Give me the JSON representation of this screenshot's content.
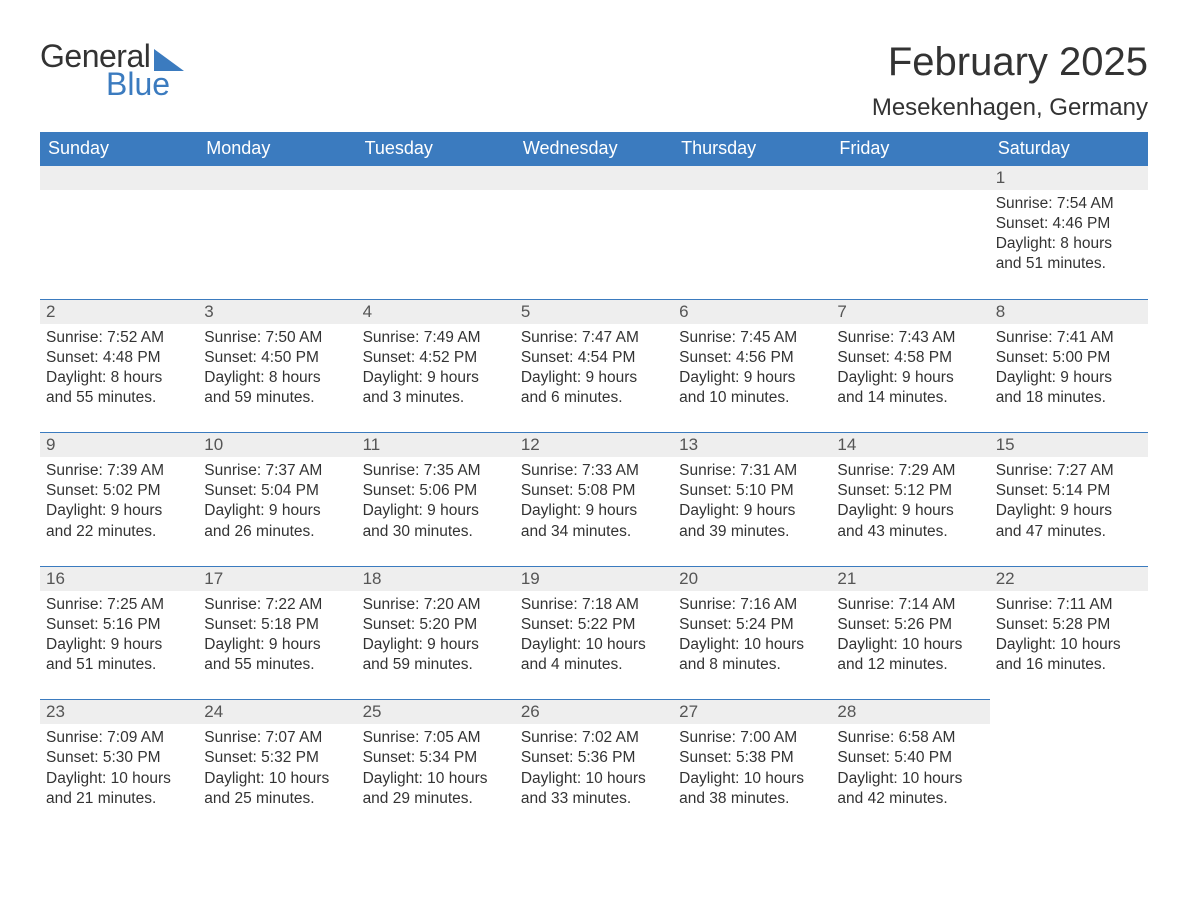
{
  "logo": {
    "word1": "General",
    "word2": "Blue"
  },
  "title": "February 2025",
  "subtitle": "Mesekenhagen, Germany",
  "colors": {
    "header_bg": "#3b7bbf",
    "header_text": "#ffffff",
    "daynum_bg": "#eeeeee",
    "border": "#3b7bbf",
    "body_text": "#333333",
    "page_bg": "#ffffff"
  },
  "typography": {
    "title_fontsize": 40,
    "subtitle_fontsize": 24,
    "header_fontsize": 18,
    "cell_fontsize": 15.5,
    "font_family": "Arial"
  },
  "layout": {
    "columns": 7,
    "rows": 5
  },
  "weekdays": [
    "Sunday",
    "Monday",
    "Tuesday",
    "Wednesday",
    "Thursday",
    "Friday",
    "Saturday"
  ],
  "weeks": [
    {
      "days": [
        null,
        null,
        null,
        null,
        null,
        null,
        {
          "num": "1",
          "sunrise": "Sunrise: 7:54 AM",
          "sunset": "Sunset: 4:46 PM",
          "daylight1": "Daylight: 8 hours",
          "daylight2": "and 51 minutes."
        }
      ]
    },
    {
      "days": [
        {
          "num": "2",
          "sunrise": "Sunrise: 7:52 AM",
          "sunset": "Sunset: 4:48 PM",
          "daylight1": "Daylight: 8 hours",
          "daylight2": "and 55 minutes."
        },
        {
          "num": "3",
          "sunrise": "Sunrise: 7:50 AM",
          "sunset": "Sunset: 4:50 PM",
          "daylight1": "Daylight: 8 hours",
          "daylight2": "and 59 minutes."
        },
        {
          "num": "4",
          "sunrise": "Sunrise: 7:49 AM",
          "sunset": "Sunset: 4:52 PM",
          "daylight1": "Daylight: 9 hours",
          "daylight2": "and 3 minutes."
        },
        {
          "num": "5",
          "sunrise": "Sunrise: 7:47 AM",
          "sunset": "Sunset: 4:54 PM",
          "daylight1": "Daylight: 9 hours",
          "daylight2": "and 6 minutes."
        },
        {
          "num": "6",
          "sunrise": "Sunrise: 7:45 AM",
          "sunset": "Sunset: 4:56 PM",
          "daylight1": "Daylight: 9 hours",
          "daylight2": "and 10 minutes."
        },
        {
          "num": "7",
          "sunrise": "Sunrise: 7:43 AM",
          "sunset": "Sunset: 4:58 PM",
          "daylight1": "Daylight: 9 hours",
          "daylight2": "and 14 minutes."
        },
        {
          "num": "8",
          "sunrise": "Sunrise: 7:41 AM",
          "sunset": "Sunset: 5:00 PM",
          "daylight1": "Daylight: 9 hours",
          "daylight2": "and 18 minutes."
        }
      ]
    },
    {
      "days": [
        {
          "num": "9",
          "sunrise": "Sunrise: 7:39 AM",
          "sunset": "Sunset: 5:02 PM",
          "daylight1": "Daylight: 9 hours",
          "daylight2": "and 22 minutes."
        },
        {
          "num": "10",
          "sunrise": "Sunrise: 7:37 AM",
          "sunset": "Sunset: 5:04 PM",
          "daylight1": "Daylight: 9 hours",
          "daylight2": "and 26 minutes."
        },
        {
          "num": "11",
          "sunrise": "Sunrise: 7:35 AM",
          "sunset": "Sunset: 5:06 PM",
          "daylight1": "Daylight: 9 hours",
          "daylight2": "and 30 minutes."
        },
        {
          "num": "12",
          "sunrise": "Sunrise: 7:33 AM",
          "sunset": "Sunset: 5:08 PM",
          "daylight1": "Daylight: 9 hours",
          "daylight2": "and 34 minutes."
        },
        {
          "num": "13",
          "sunrise": "Sunrise: 7:31 AM",
          "sunset": "Sunset: 5:10 PM",
          "daylight1": "Daylight: 9 hours",
          "daylight2": "and 39 minutes."
        },
        {
          "num": "14",
          "sunrise": "Sunrise: 7:29 AM",
          "sunset": "Sunset: 5:12 PM",
          "daylight1": "Daylight: 9 hours",
          "daylight2": "and 43 minutes."
        },
        {
          "num": "15",
          "sunrise": "Sunrise: 7:27 AM",
          "sunset": "Sunset: 5:14 PM",
          "daylight1": "Daylight: 9 hours",
          "daylight2": "and 47 minutes."
        }
      ]
    },
    {
      "days": [
        {
          "num": "16",
          "sunrise": "Sunrise: 7:25 AM",
          "sunset": "Sunset: 5:16 PM",
          "daylight1": "Daylight: 9 hours",
          "daylight2": "and 51 minutes."
        },
        {
          "num": "17",
          "sunrise": "Sunrise: 7:22 AM",
          "sunset": "Sunset: 5:18 PM",
          "daylight1": "Daylight: 9 hours",
          "daylight2": "and 55 minutes."
        },
        {
          "num": "18",
          "sunrise": "Sunrise: 7:20 AM",
          "sunset": "Sunset: 5:20 PM",
          "daylight1": "Daylight: 9 hours",
          "daylight2": "and 59 minutes."
        },
        {
          "num": "19",
          "sunrise": "Sunrise: 7:18 AM",
          "sunset": "Sunset: 5:22 PM",
          "daylight1": "Daylight: 10 hours",
          "daylight2": "and 4 minutes."
        },
        {
          "num": "20",
          "sunrise": "Sunrise: 7:16 AM",
          "sunset": "Sunset: 5:24 PM",
          "daylight1": "Daylight: 10 hours",
          "daylight2": "and 8 minutes."
        },
        {
          "num": "21",
          "sunrise": "Sunrise: 7:14 AM",
          "sunset": "Sunset: 5:26 PM",
          "daylight1": "Daylight: 10 hours",
          "daylight2": "and 12 minutes."
        },
        {
          "num": "22",
          "sunrise": "Sunrise: 7:11 AM",
          "sunset": "Sunset: 5:28 PM",
          "daylight1": "Daylight: 10 hours",
          "daylight2": "and 16 minutes."
        }
      ]
    },
    {
      "days": [
        {
          "num": "23",
          "sunrise": "Sunrise: 7:09 AM",
          "sunset": "Sunset: 5:30 PM",
          "daylight1": "Daylight: 10 hours",
          "daylight2": "and 21 minutes."
        },
        {
          "num": "24",
          "sunrise": "Sunrise: 7:07 AM",
          "sunset": "Sunset: 5:32 PM",
          "daylight1": "Daylight: 10 hours",
          "daylight2": "and 25 minutes."
        },
        {
          "num": "25",
          "sunrise": "Sunrise: 7:05 AM",
          "sunset": "Sunset: 5:34 PM",
          "daylight1": "Daylight: 10 hours",
          "daylight2": "and 29 minutes."
        },
        {
          "num": "26",
          "sunrise": "Sunrise: 7:02 AM",
          "sunset": "Sunset: 5:36 PM",
          "daylight1": "Daylight: 10 hours",
          "daylight2": "and 33 minutes."
        },
        {
          "num": "27",
          "sunrise": "Sunrise: 7:00 AM",
          "sunset": "Sunset: 5:38 PM",
          "daylight1": "Daylight: 10 hours",
          "daylight2": "and 38 minutes."
        },
        {
          "num": "28",
          "sunrise": "Sunrise: 6:58 AM",
          "sunset": "Sunset: 5:40 PM",
          "daylight1": "Daylight: 10 hours",
          "daylight2": "and 42 minutes."
        },
        null
      ]
    }
  ]
}
